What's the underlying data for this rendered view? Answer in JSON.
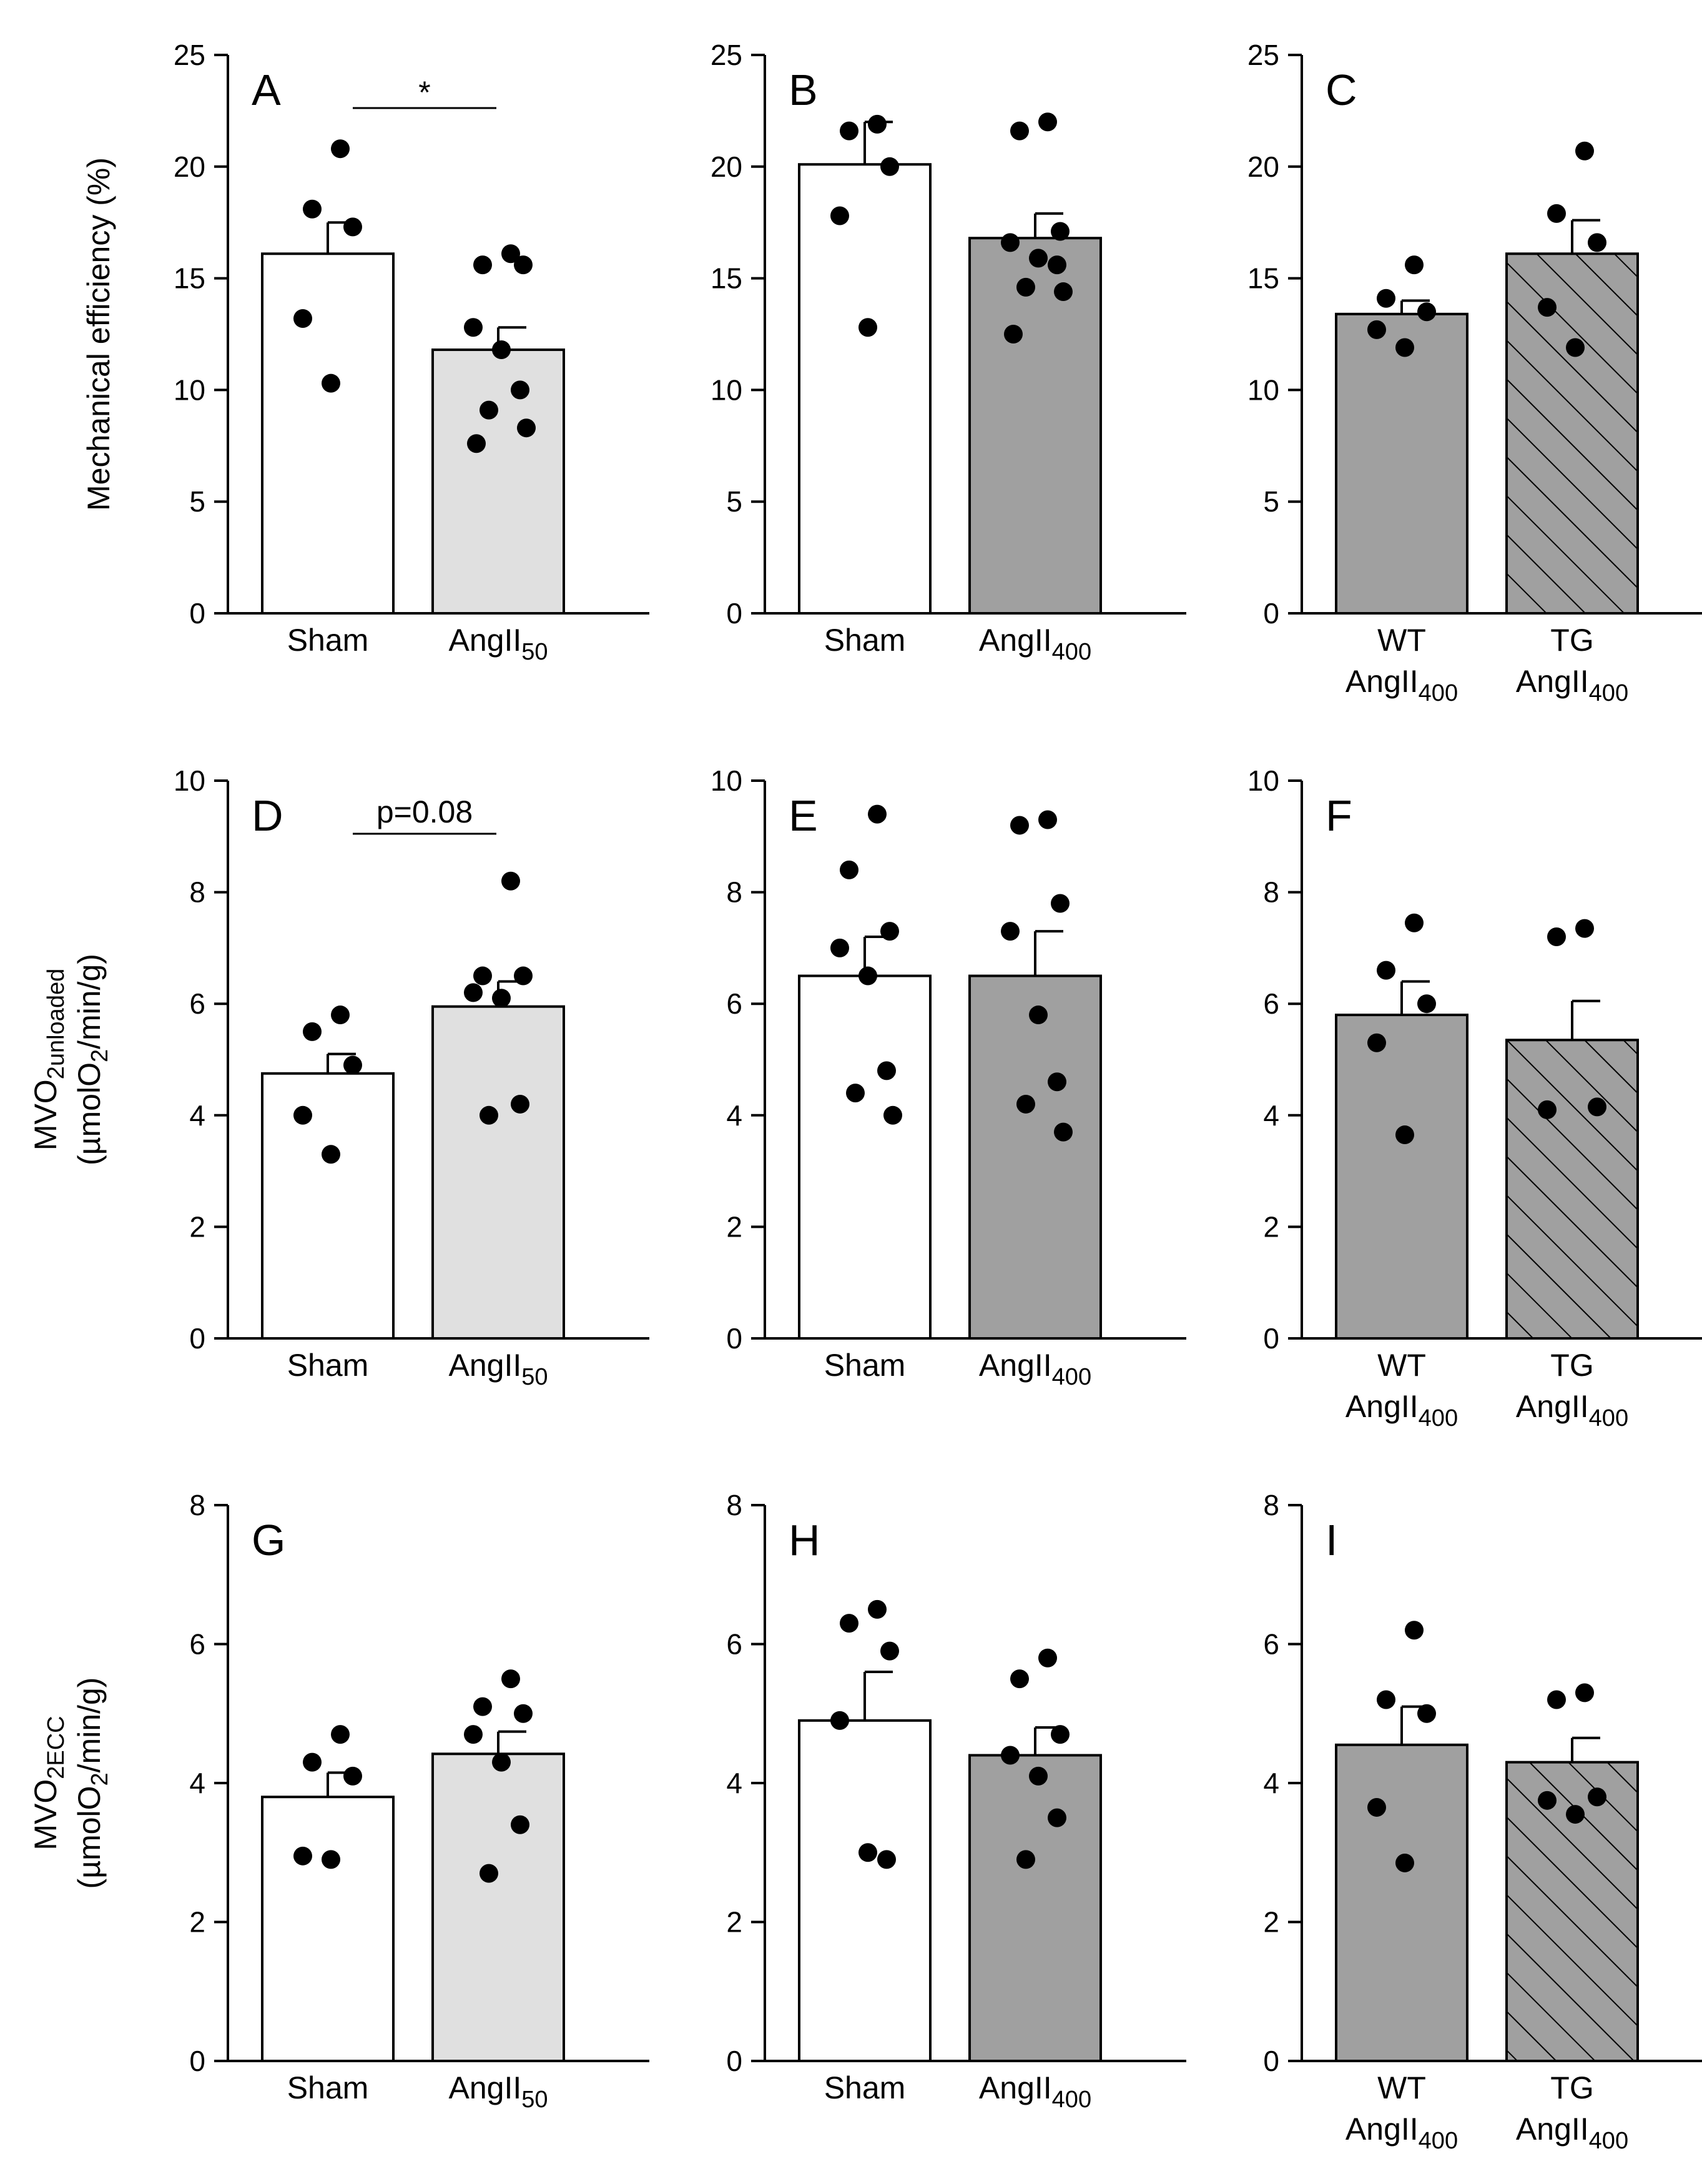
{
  "colors": {
    "white_bar": "#ffffff",
    "light_gray_bar": "#e0e0e0",
    "dark_gray_bar": "#a0a0a0",
    "dot": "#000000"
  },
  "chart_data": [
    {
      "panel": "A",
      "type": "bar",
      "ylabel": "Mechanical efficiency (%)",
      "ylim": [
        0,
        25
      ],
      "yticks": [
        0,
        5,
        10,
        15,
        20,
        25
      ],
      "bars": [
        {
          "label": "Sham",
          "sub": "",
          "value": 16.1,
          "err": 1.4,
          "fill": "white",
          "points": [
            20.8,
            18.1,
            17.3,
            13.2,
            10.3
          ]
        },
        {
          "label": "AngII",
          "sub": "50",
          "value": 11.8,
          "err": 1.0,
          "fill": "light",
          "points": [
            16.1,
            15.6,
            15.6,
            12.8,
            11.8,
            10.0,
            9.1,
            8.3,
            7.6
          ]
        }
      ],
      "annotation": "*"
    },
    {
      "panel": "B",
      "type": "bar",
      "ylabel": "",
      "ylim": [
        0,
        25
      ],
      "yticks": [
        0,
        5,
        10,
        15,
        20,
        25
      ],
      "bars": [
        {
          "label": "Sham",
          "sub": "",
          "value": 20.1,
          "err": 1.9,
          "fill": "white",
          "points": [
            21.9,
            21.6,
            20.0,
            17.8,
            12.8
          ]
        },
        {
          "label": "AngII",
          "sub": "400",
          "value": 16.8,
          "err": 1.1,
          "fill": "dark",
          "points": [
            22.0,
            21.6,
            17.1,
            16.6,
            15.9,
            15.6,
            14.6,
            14.4,
            12.5
          ]
        }
      ],
      "annotation": ""
    },
    {
      "panel": "C",
      "type": "bar",
      "ylabel": "",
      "ylim": [
        0,
        25
      ],
      "yticks": [
        0,
        5,
        10,
        15,
        20,
        25
      ],
      "bars": [
        {
          "label": "WT",
          "label2": "AngII",
          "sub": "400",
          "value": 13.4,
          "err": 0.6,
          "fill": "dark",
          "points": [
            15.6,
            14.1,
            13.5,
            12.7,
            11.9
          ]
        },
        {
          "label": "TG",
          "label2": "AngII",
          "sub": "400",
          "value": 16.1,
          "err": 1.5,
          "fill": "hatch",
          "points": [
            20.7,
            17.9,
            16.6,
            13.7,
            11.9
          ]
        }
      ],
      "annotation": ""
    },
    {
      "panel": "D",
      "type": "bar",
      "ylabel": "MVO",
      "ylabel_sub": "2unloaded",
      "ylabel2": "(µmolO",
      "ylabel2_sub": "2",
      "ylabel2_rest": "/min/g)",
      "ylim": [
        0,
        10
      ],
      "yticks": [
        0,
        2,
        4,
        6,
        8,
        10
      ],
      "bars": [
        {
          "label": "Sham",
          "sub": "",
          "value": 4.75,
          "err": 0.35,
          "fill": "white",
          "points": [
            5.8,
            5.5,
            4.9,
            4.0,
            3.3
          ]
        },
        {
          "label": "AngII",
          "sub": "50",
          "value": 5.95,
          "err": 0.45,
          "fill": "light",
          "points": [
            8.2,
            6.5,
            6.5,
            6.2,
            6.1,
            4.2,
            4.0
          ]
        }
      ],
      "annotation": "p=0.08"
    },
    {
      "panel": "E",
      "type": "bar",
      "ylabel": "",
      "ylim": [
        0,
        10
      ],
      "yticks": [
        0,
        2,
        4,
        6,
        8,
        10
      ],
      "bars": [
        {
          "label": "Sham",
          "sub": "",
          "value": 6.5,
          "err": 0.7,
          "fill": "white",
          "points": [
            9.4,
            8.4,
            7.3,
            7.0,
            6.5,
            4.8,
            4.4,
            4.0
          ]
        },
        {
          "label": "AngII",
          "sub": "400",
          "value": 6.5,
          "err": 0.8,
          "fill": "dark",
          "points": [
            9.3,
            9.2,
            7.8,
            7.3,
            5.8,
            4.6,
            4.2,
            3.7
          ]
        }
      ],
      "annotation": ""
    },
    {
      "panel": "F",
      "type": "bar",
      "ylabel": "",
      "ylim": [
        0,
        10
      ],
      "yticks": [
        0,
        2,
        4,
        6,
        8,
        10
      ],
      "bars": [
        {
          "label": "WT",
          "label2": "AngII",
          "sub": "400",
          "value": 5.8,
          "err": 0.6,
          "fill": "dark",
          "points": [
            7.45,
            6.6,
            6.0,
            5.3,
            3.65
          ]
        },
        {
          "label": "TG",
          "label2": "AngII",
          "sub": "400",
          "value": 5.35,
          "err": 0.7,
          "fill": "hatch",
          "points": [
            7.35,
            7.2,
            4.15,
            4.1
          ]
        }
      ],
      "annotation": ""
    },
    {
      "panel": "G",
      "type": "bar",
      "ylabel": "MVO",
      "ylabel_sub": "2ECC",
      "ylabel2": "(µmolO",
      "ylabel2_sub": "2",
      "ylabel2_rest": "/min/g)",
      "ylim": [
        0,
        8
      ],
      "yticks": [
        0,
        2,
        4,
        6,
        8
      ],
      "bars": [
        {
          "label": "Sham",
          "sub": "",
          "value": 3.8,
          "err": 0.35,
          "fill": "white",
          "points": [
            4.7,
            4.3,
            4.1,
            2.95,
            2.9
          ]
        },
        {
          "label": "AngII",
          "sub": "50",
          "value": 4.42,
          "err": 0.32,
          "fill": "light",
          "points": [
            5.5,
            5.1,
            5.0,
            4.7,
            4.3,
            3.4,
            2.7
          ]
        }
      ],
      "annotation": ""
    },
    {
      "panel": "H",
      "type": "bar",
      "ylabel": "",
      "ylim": [
        0,
        8
      ],
      "yticks": [
        0,
        2,
        4,
        6,
        8
      ],
      "bars": [
        {
          "label": "Sham",
          "sub": "",
          "value": 4.9,
          "err": 0.7,
          "fill": "white",
          "points": [
            6.5,
            6.3,
            5.9,
            4.9,
            3.0,
            2.9
          ]
        },
        {
          "label": "AngII",
          "sub": "400",
          "value": 4.4,
          "err": 0.4,
          "fill": "dark",
          "points": [
            5.8,
            5.5,
            4.7,
            4.4,
            4.1,
            3.5,
            2.9
          ]
        }
      ],
      "annotation": ""
    },
    {
      "panel": "I",
      "type": "bar",
      "ylabel": "",
      "ylim": [
        0,
        8
      ],
      "yticks": [
        0,
        2,
        4,
        6,
        8
      ],
      "bars": [
        {
          "label": "WT",
          "label2": "AngII",
          "sub": "400",
          "value": 4.55,
          "err": 0.55,
          "fill": "dark",
          "points": [
            6.2,
            5.2,
            5.0,
            3.65,
            2.85
          ]
        },
        {
          "label": "TG",
          "label2": "AngII",
          "sub": "400",
          "value": 4.3,
          "err": 0.35,
          "fill": "hatch",
          "points": [
            5.3,
            5.2,
            3.8,
            3.75,
            3.55
          ]
        }
      ],
      "annotation": ""
    }
  ]
}
